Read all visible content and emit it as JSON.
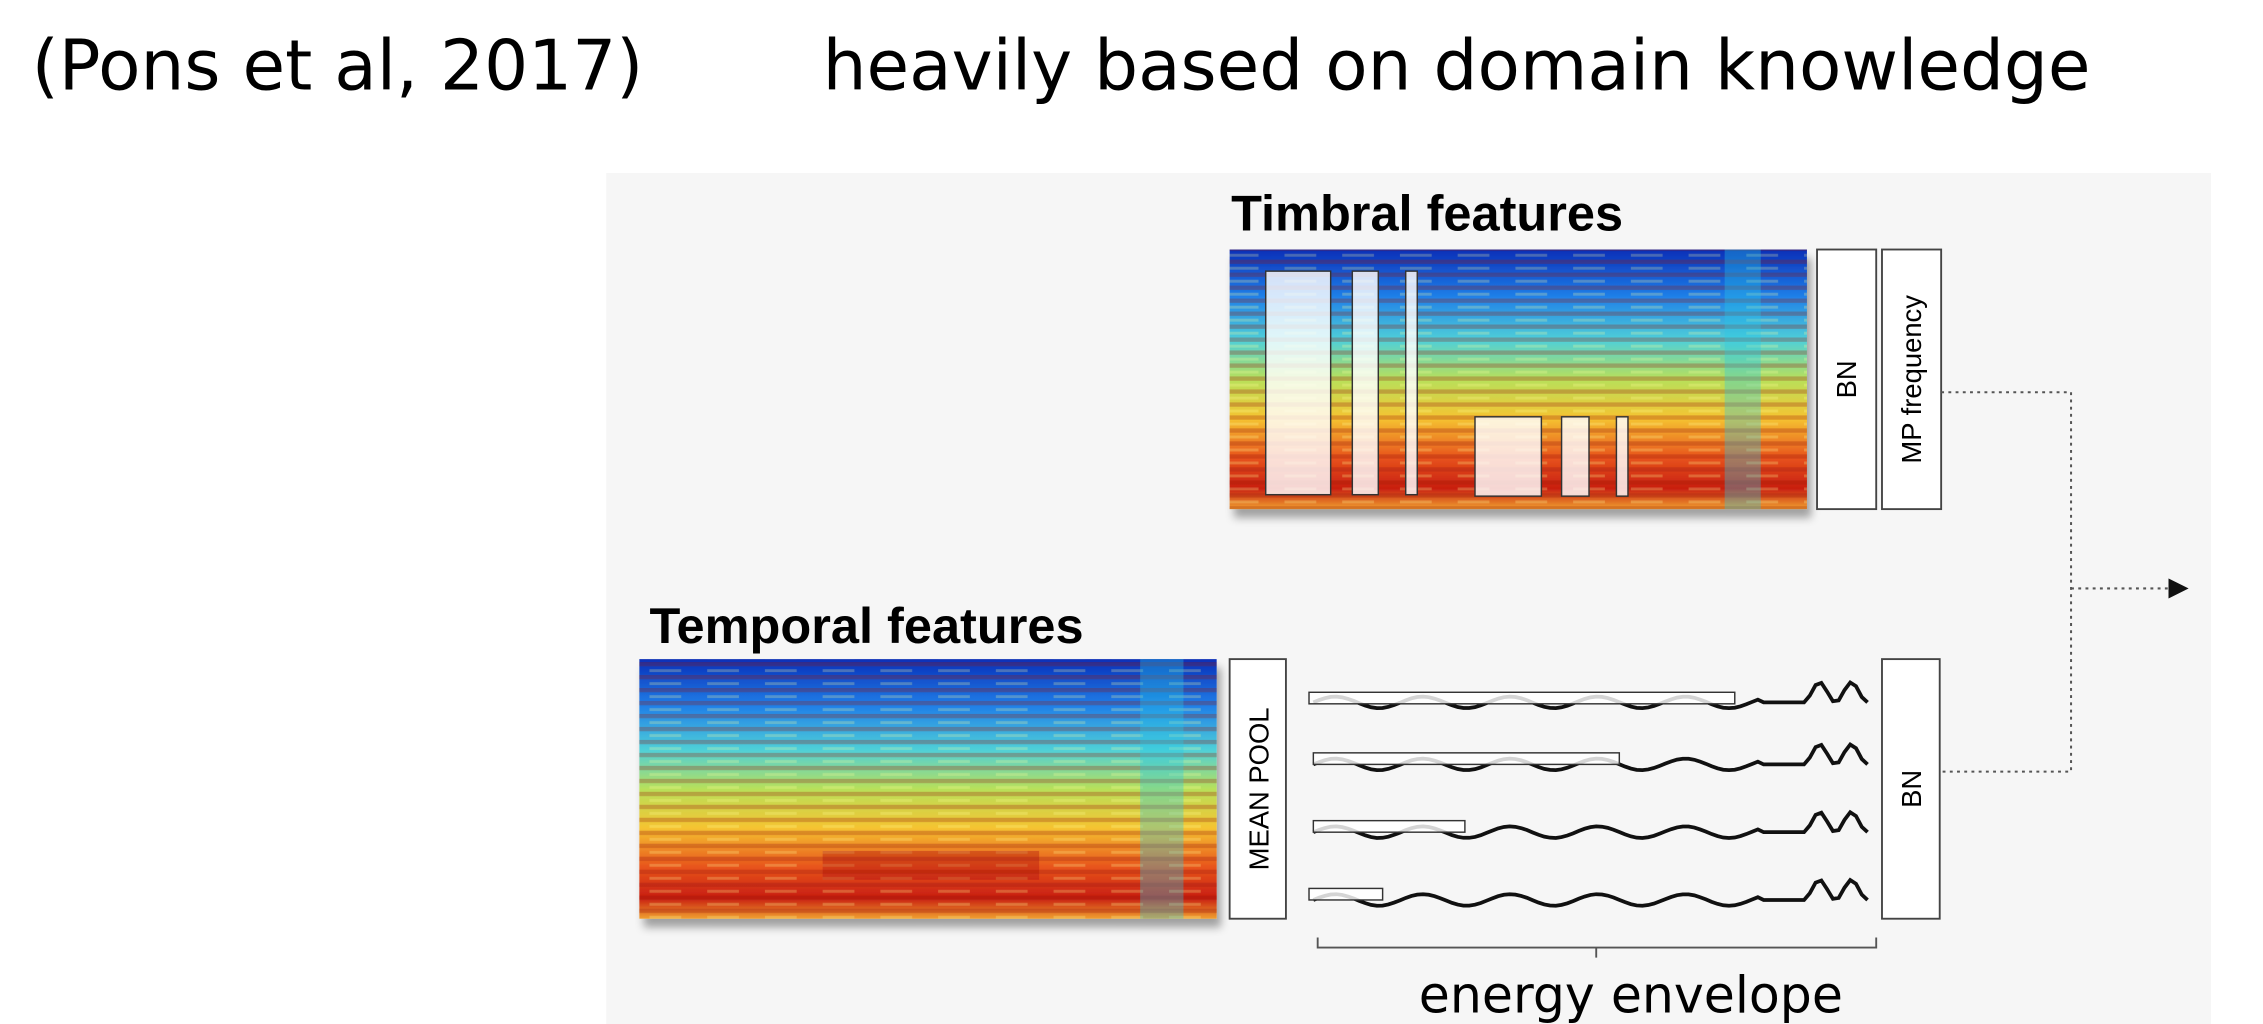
{
  "header": {
    "citation": "(Pons et al, 2017)",
    "subtitle": "heavily based on domain knowledge"
  },
  "diagram": {
    "timbral": {
      "title": "Timbral features",
      "bn": "BN",
      "pool": "MP frequency"
    },
    "temporal": {
      "title": "Temporal features",
      "pool": "MEAN POOL",
      "bn": "BN",
      "envelope": "energy envelope"
    }
  }
}
